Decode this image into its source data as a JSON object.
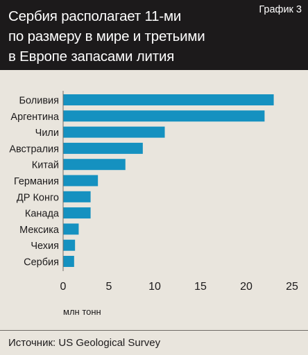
{
  "header": {
    "title_lines": [
      "Сербия располагает 11-ми",
      "по размеру в мире и третьими",
      "в Европе запасами лития"
    ],
    "chart_label": "График 3"
  },
  "footer": {
    "source": "Источник: US Geological Survey"
  },
  "colors": {
    "bar": "#1591c0",
    "header_bg": "#1c1a1b",
    "background": "#e9e5dd"
  },
  "chart_data": {
    "type": "bar",
    "orientation": "horizontal",
    "categories": [
      "Боливия",
      "Аргентина",
      "Чили",
      "Австралия",
      "Китай",
      "Германия",
      "ДР Конго",
      "Канада",
      "Мексика",
      "Чехия",
      "Сербия"
    ],
    "values": [
      23,
      22,
      11.1,
      8.7,
      6.8,
      3.8,
      3.0,
      3.0,
      1.7,
      1.3,
      1.2
    ],
    "xlabel": "млн тонн",
    "xlim": [
      0,
      25
    ],
    "xticks": [
      0,
      5,
      10,
      15,
      20,
      25
    ],
    "grid": false,
    "legend": "none"
  }
}
